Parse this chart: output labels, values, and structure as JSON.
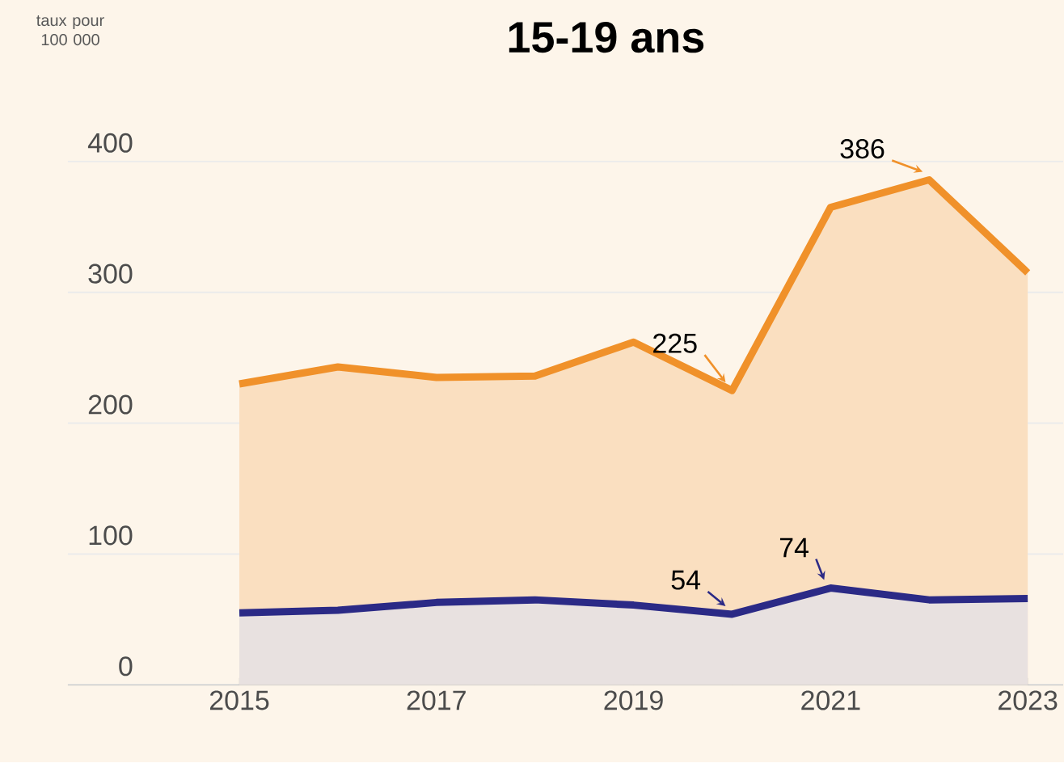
{
  "chart_data": {
    "type": "area",
    "title": "15-19 ans",
    "x": [
      2015,
      2016,
      2017,
      2018,
      2019,
      2020,
      2021,
      2022,
      2023
    ],
    "series": [
      {
        "color": "#f0912a",
        "values": [
          230,
          243,
          235,
          236,
          262,
          225,
          365,
          386,
          315
        ]
      },
      {
        "color": "#2b2a86",
        "values": [
          55,
          57,
          63,
          65,
          61,
          54,
          74,
          65,
          66
        ]
      }
    ],
    "xlim": [
      2013.26,
      2023.36
    ],
    "ylim": [
      0,
      400
    ],
    "xticks": [
      2015,
      2017,
      2019,
      2021,
      2023
    ],
    "yticks": [
      0,
      100,
      200,
      300,
      400
    ],
    "grid": "y",
    "annotations": [
      {
        "text": "225",
        "x": 2020,
        "y": 225
      },
      {
        "text": "386",
        "x": 2022,
        "y": 386
      },
      {
        "text": "54",
        "x": 2020,
        "y": 54
      },
      {
        "text": "74",
        "x": 2021,
        "y": 74
      },
      "taux pour 100 000"
    ]
  }
}
